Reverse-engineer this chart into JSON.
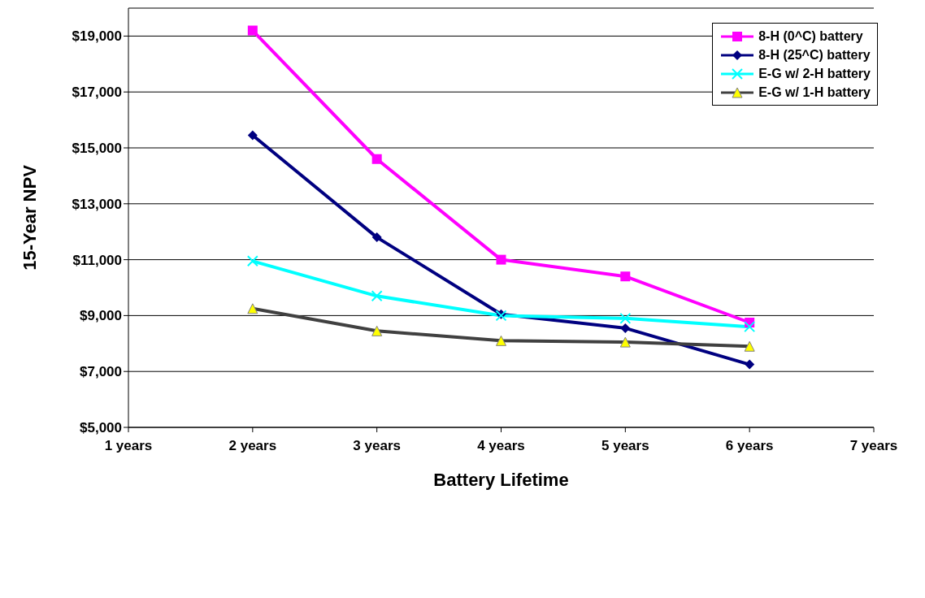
{
  "chart_data": {
    "type": "line",
    "xlabel": "Battery Lifetime",
    "ylabel": "15-Year NPV",
    "categories": [
      "1 years",
      "2 years",
      "3 years",
      "4 years",
      "5 years",
      "6 years",
      "7 years"
    ],
    "series": [
      {
        "name": "8-H (0^C) battery",
        "color": "#ff00ff",
        "marker": "square",
        "values": [
          null,
          19200,
          14600,
          11000,
          10400,
          8750,
          null
        ]
      },
      {
        "name": "8-H (25^C) battery",
        "color": "#000080",
        "marker": "diamond",
        "values": [
          null,
          15450,
          11800,
          9050,
          8550,
          7250,
          null
        ]
      },
      {
        "name": "E-G w/ 2-H battery",
        "color": "#00ffff",
        "marker": "cross",
        "values": [
          null,
          10950,
          9700,
          9000,
          8900,
          8600,
          null
        ]
      },
      {
        "name": "E-G w/ 1-H battery",
        "color": "#404040",
        "marker": "triangle",
        "values": [
          null,
          9250,
          8450,
          8100,
          8050,
          7900,
          null
        ]
      }
    ],
    "ylim": [
      5000,
      20000
    ],
    "yticks": [
      {
        "value": 5000,
        "label": "$5,000"
      },
      {
        "value": 7000,
        "label": "$7,000"
      },
      {
        "value": 9000,
        "label": "$9,000"
      },
      {
        "value": 11000,
        "label": "$11,000"
      },
      {
        "value": 13000,
        "label": "$13,000"
      },
      {
        "value": 15000,
        "label": "$15,000"
      },
      {
        "value": 17000,
        "label": "$17,000"
      },
      {
        "value": 19000,
        "label": "$19,000"
      }
    ],
    "grid": "y",
    "legend": "top right",
    "line_style": "solid"
  }
}
